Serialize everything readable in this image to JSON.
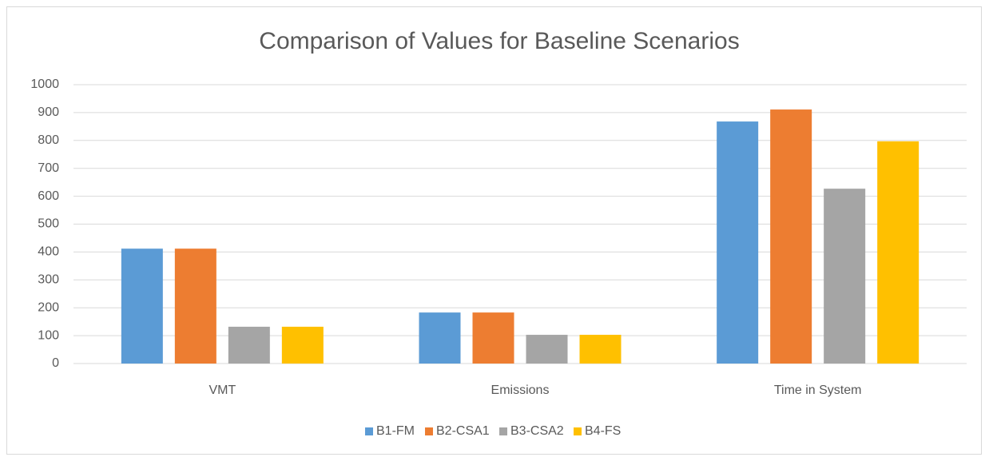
{
  "chart_data": {
    "type": "bar",
    "title": "Comparison of Values for Baseline Scenarios",
    "categories": [
      "VMT",
      "Emissions",
      "Time in System"
    ],
    "series": [
      {
        "name": "B1-FM",
        "color": "#5b9bd5",
        "values": [
          412,
          183,
          868
        ]
      },
      {
        "name": "B2-CSA1",
        "color": "#ed7d31",
        "values": [
          412,
          183,
          911
        ]
      },
      {
        "name": "B3-CSA2",
        "color": "#a5a5a5",
        "values": [
          132,
          103,
          627
        ]
      },
      {
        "name": "B4-FS",
        "color": "#ffc000",
        "values": [
          132,
          103,
          797
        ]
      }
    ],
    "ylim": [
      0,
      1000
    ],
    "yticks": [
      0,
      100,
      200,
      300,
      400,
      500,
      600,
      700,
      800,
      900,
      1000
    ],
    "grid": true,
    "legend": "bottom"
  }
}
